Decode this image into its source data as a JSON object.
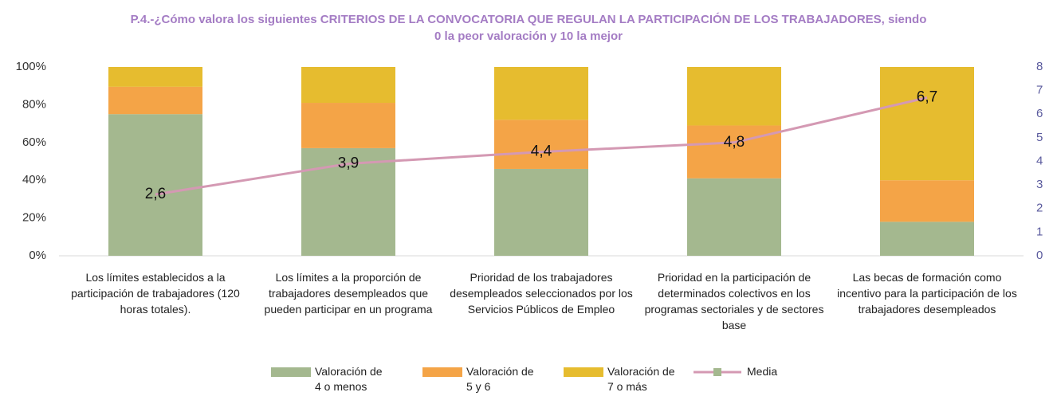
{
  "chart_data": {
    "type": "bar",
    "title": "P.4.-¿Cómo valora los siguientes CRITERIOS DE LA CONVOCATORIA QUE REGULAN LA PARTICIPACIÓN DE LOS TRABAJADORES, siendo 0 la peor valoración y 10 la mejor",
    "categories": [
      "Los límites establecidos a la participación de trabajadores (120 horas totales).",
      "Los límites a la proporción de trabajadores desempleados que pueden participar en un programa",
      "Prioridad de los trabajadores desempleados seleccionados por los Servicios Públicos de Empleo",
      "Prioridad en la participación de determinados colectivos en los programas sectoriales y de sectores base",
      "Las becas de formación como incentivo para la participación de los trabajadores desempleados"
    ],
    "series": [
      {
        "name": "Valoración de 4 o menos",
        "color": "#a4b88f",
        "values": [
          75,
          57,
          46,
          41,
          18
        ]
      },
      {
        "name": "Valoración de 5 y 6",
        "color": "#f4a447",
        "values": [
          14.5,
          24,
          26,
          28,
          22
        ]
      },
      {
        "name": "Valoración de 7 o más",
        "color": "#e6bc2f",
        "values": [
          10.5,
          19,
          28,
          31,
          60
        ]
      },
      {
        "name": "Media",
        "type": "line",
        "axis": "y2",
        "color": "#d499b3",
        "marker_color": "#a4b88f",
        "values": [
          2.6,
          3.9,
          4.4,
          4.8,
          6.7
        ],
        "value_labels": [
          "2,6",
          "3,9",
          "4,4",
          "4,8",
          "6,7"
        ]
      }
    ],
    "ylim": [
      0,
      100
    ],
    "yticks": [
      {
        "value": 0,
        "label": "0%"
      },
      {
        "value": 20,
        "label": "20%"
      },
      {
        "value": 40,
        "label": "40%"
      },
      {
        "value": 60,
        "label": "60%"
      },
      {
        "value": 80,
        "label": "80%"
      },
      {
        "value": 100,
        "label": "100%"
      }
    ],
    "y2lim": [
      0,
      8
    ],
    "y2ticks": [
      0,
      1,
      2,
      3,
      4,
      5,
      6,
      7,
      8
    ],
    "grid": false,
    "legend": "bottom"
  }
}
